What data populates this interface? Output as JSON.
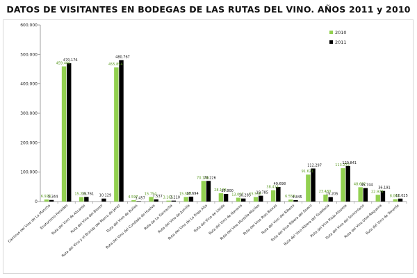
{
  "chart_data": {
    "type": "bar",
    "title": "DATOS DE VISITANTES EN BODEGAS DE LAS RUTAS DEL VINO. AÑOS 2011 y 2010",
    "xlabel": "",
    "ylabel": "",
    "ylim": [
      0,
      600000
    ],
    "y_ticks": [
      "0",
      "100.000",
      "200.000",
      "300.000",
      "400.000",
      "500.000",
      "600.000"
    ],
    "legend_position": "top-right",
    "grid": false,
    "categories": [
      "Caminos del Vino de La Mancha",
      "Enoturismo Penedès",
      "Ruta del Vino de Alicante",
      "Ruta del Vino del Bierzo",
      "Ruta del Vino y el Brandy del Marco de Jerez",
      "Ruta del Vino de Bullas",
      "Ruta del Vino del Condado de Huelva",
      "Ruta de La Garnacha",
      "Ruta del Vino de Jumilla",
      "Ruta del Vino de La Rioja Alta",
      "Ruta del Vino de Lleida",
      "Ruta del Vino de Navarra",
      "Ruta del Vino Montilla-Moriles",
      "Ruta del Vino Rías Baixas",
      "Ruta del Vino del Ribeiro",
      "Ruta del Vino Ribera del Duero",
      "Ruta del Vino Ribera del Guadiana",
      "Ruta del Vino Rioja Alavesa",
      "Ruta del Vino del Somontano",
      "Ruta del Vino Utiel-Requena",
      "Ruta del Vino de Tenerife"
    ],
    "series": [
      {
        "name": "2010",
        "color": "#92d050",
        "values": [
          6928,
          459400,
          15261,
          0,
          455854,
          4597,
          15754,
          3165,
          15587,
          70146,
          28128,
          13007,
          15518,
          38414,
          6559,
          91621,
          23480,
          113272,
          48682,
          22978,
          8061
        ],
        "labels": [
          "6.928",
          "459.400",
          "15.261",
          "",
          "455.854",
          "4.597",
          "15.754",
          "3.165",
          "15.587",
          "70.146",
          "28.128",
          "13.007",
          "15.518",
          "38.414",
          "6.559",
          "91.621",
          "23.480",
          "113.272",
          "48.682",
          "22.978",
          "8.061"
        ]
      },
      {
        "name": "2011",
        "color": "#000000",
        "values": [
          5344,
          470176,
          15761,
          10129,
          480767,
          1457,
          7537,
          3210,
          16694,
          70226,
          25800,
          10285,
          19785,
          49698,
          4845,
          112297,
          15205,
          120841,
          45744,
          36191,
          10025
        ],
        "labels": [
          "5.344",
          "470.176",
          "15.761",
          "10.129",
          "480.767",
          "1.457",
          "7.537",
          "3.210",
          "16.694",
          "70.226",
          "25.800",
          "10.285",
          "19.785",
          "49.698",
          "4.845",
          "112.297",
          "15.205",
          "120.841",
          "45.744",
          "36.191",
          "10.025"
        ]
      }
    ]
  }
}
